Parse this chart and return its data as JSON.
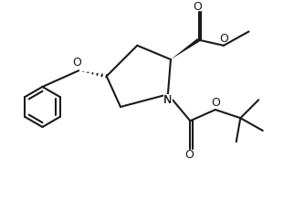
{
  "bg_color": "#ffffff",
  "line_color": "#1a1a1a",
  "line_width": 1.5,
  "fig_width": 3.22,
  "fig_height": 2.2,
  "dpi": 100,
  "xlim": [
    0.0,
    10.0
  ],
  "ylim": [
    0.0,
    7.0
  ]
}
